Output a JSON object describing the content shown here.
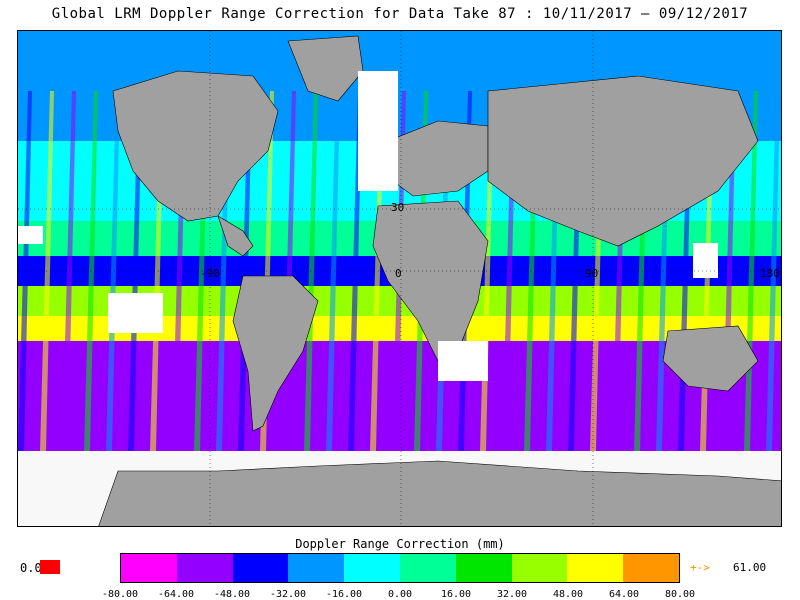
{
  "title": "Global LRM Doppler Range Correction for Data Take 87 : 10/11/2017 – 09/12/2017",
  "legend": {
    "title": "Doppler Range Correction (mm)",
    "zero_label": "0.0",
    "zero_color": "#ff0000",
    "over_arrow": "+->",
    "over_value": "61.00",
    "ticks": [
      "-80.00",
      "-64.00",
      "-48.00",
      "-32.00",
      "-16.00",
      "0.00",
      "16.00",
      "32.00",
      "48.00",
      "64.00",
      "80.00"
    ],
    "colors": [
      "#ff00ff",
      "#9400ff",
      "#0000ff",
      "#0096ff",
      "#00ffff",
      "#00ff96",
      "#00e600",
      "#96ff00",
      "#ffff00",
      "#ff9600"
    ]
  },
  "map": {
    "lat_labels": [
      "30",
      "0"
    ],
    "lon_labels": [
      "-90",
      "0",
      "90",
      "180"
    ],
    "land_color": "#a0a0a0",
    "nodata_color": "#ffffff"
  }
}
